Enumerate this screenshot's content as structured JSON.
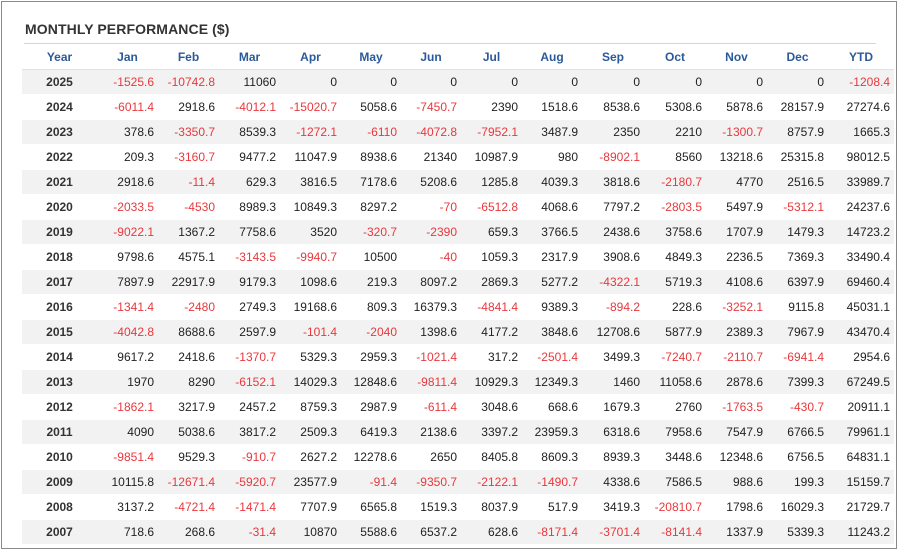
{
  "header": {
    "title": "MONTHLY PERFORMANCE ($)"
  },
  "colors": {
    "negative": "#e8383d",
    "header_text": "#2b5a9a",
    "row_alt": "#f2f2f2"
  },
  "table": {
    "columns": [
      "Year",
      "Jan",
      "Feb",
      "Mar",
      "Apr",
      "May",
      "Jun",
      "Jul",
      "Aug",
      "Sep",
      "Oct",
      "Nov",
      "Dec",
      "YTD"
    ],
    "rows": [
      [
        "2025",
        "-1525.6",
        "-10742.8",
        "11060",
        "0",
        "0",
        "0",
        "0",
        "0",
        "0",
        "0",
        "0",
        "0",
        "-1208.4"
      ],
      [
        "2024",
        "-6011.4",
        "2918.6",
        "-4012.1",
        "-15020.7",
        "5058.6",
        "-7450.7",
        "2390",
        "1518.6",
        "8538.6",
        "5308.6",
        "5878.6",
        "28157.9",
        "27274.6"
      ],
      [
        "2023",
        "378.6",
        "-3350.7",
        "8539.3",
        "-1272.1",
        "-6110",
        "-4072.8",
        "-7952.1",
        "3487.9",
        "2350",
        "2210",
        "-1300.7",
        "8757.9",
        "1665.3"
      ],
      [
        "2022",
        "209.3",
        "-3160.7",
        "9477.2",
        "11047.9",
        "8938.6",
        "21340",
        "10987.9",
        "980",
        "-8902.1",
        "8560",
        "13218.6",
        "25315.8",
        "98012.5"
      ],
      [
        "2021",
        "2918.6",
        "-11.4",
        "629.3",
        "3816.5",
        "7178.6",
        "5208.6",
        "1285.8",
        "4039.3",
        "3818.6",
        "-2180.7",
        "4770",
        "2516.5",
        "33989.7"
      ],
      [
        "2020",
        "-2033.5",
        "-4530",
        "8989.3",
        "10849.3",
        "8297.2",
        "-70",
        "-6512.8",
        "4068.6",
        "7797.2",
        "-2803.5",
        "5497.9",
        "-5312.1",
        "24237.6"
      ],
      [
        "2019",
        "-9022.1",
        "1367.2",
        "7758.6",
        "3520",
        "-320.7",
        "-2390",
        "659.3",
        "3766.5",
        "2438.6",
        "3758.6",
        "1707.9",
        "1479.3",
        "14723.2"
      ],
      [
        "2018",
        "9798.6",
        "4575.1",
        "-3143.5",
        "-9940.7",
        "10500",
        "-40",
        "1059.3",
        "2317.9",
        "3908.6",
        "4849.3",
        "2236.5",
        "7369.3",
        "33490.4"
      ],
      [
        "2017",
        "7897.9",
        "22917.9",
        "9179.3",
        "1098.6",
        "219.3",
        "8097.2",
        "2869.3",
        "5277.2",
        "-4322.1",
        "5719.3",
        "4108.6",
        "6397.9",
        "69460.4"
      ],
      [
        "2016",
        "-1341.4",
        "-2480",
        "2749.3",
        "19168.6",
        "809.3",
        "16379.3",
        "-4841.4",
        "9389.3",
        "-894.2",
        "228.6",
        "-3252.1",
        "9115.8",
        "45031.1"
      ],
      [
        "2015",
        "-4042.8",
        "8688.6",
        "2597.9",
        "-101.4",
        "-2040",
        "1398.6",
        "4177.2",
        "3848.6",
        "12708.6",
        "5877.9",
        "2389.3",
        "7967.9",
        "43470.4"
      ],
      [
        "2014",
        "9617.2",
        "2418.6",
        "-1370.7",
        "5329.3",
        "2959.3",
        "-1021.4",
        "317.2",
        "-2501.4",
        "3499.3",
        "-7240.7",
        "-2110.7",
        "-6941.4",
        "2954.6"
      ],
      [
        "2013",
        "1970",
        "8290",
        "-6152.1",
        "14029.3",
        "12848.6",
        "-9811.4",
        "10929.3",
        "12349.3",
        "1460",
        "11058.6",
        "2878.6",
        "7399.3",
        "67249.5"
      ],
      [
        "2012",
        "-1862.1",
        "3217.9",
        "2457.2",
        "8759.3",
        "2987.9",
        "-611.4",
        "3048.6",
        "668.6",
        "1679.3",
        "2760",
        "-1763.5",
        "-430.7",
        "20911.1"
      ],
      [
        "2011",
        "4090",
        "5038.6",
        "3817.2",
        "2509.3",
        "6419.3",
        "2138.6",
        "3397.2",
        "23959.3",
        "6318.6",
        "7958.6",
        "7547.9",
        "6766.5",
        "79961.1"
      ],
      [
        "2010",
        "-9851.4",
        "9529.3",
        "-910.7",
        "2627.2",
        "12278.6",
        "2650",
        "8405.8",
        "8609.3",
        "8939.3",
        "3448.6",
        "12348.6",
        "6756.5",
        "64831.1"
      ],
      [
        "2009",
        "10115.8",
        "-12671.4",
        "-5920.7",
        "23577.9",
        "-91.4",
        "-9350.7",
        "-2122.1",
        "-1490.7",
        "4338.6",
        "7586.5",
        "988.6",
        "199.3",
        "15159.7"
      ],
      [
        "2008",
        "3137.2",
        "-4721.4",
        "-1471.4",
        "7707.9",
        "6565.8",
        "1519.3",
        "8037.9",
        "517.9",
        "3419.3",
        "-20810.7",
        "1798.6",
        "16029.3",
        "21729.7"
      ],
      [
        "2007",
        "718.6",
        "268.6",
        "-31.4",
        "10870",
        "5588.6",
        "6537.2",
        "628.6",
        "-8171.4",
        "-3701.4",
        "-8141.4",
        "1337.9",
        "5339.3",
        "11243.2"
      ]
    ]
  }
}
